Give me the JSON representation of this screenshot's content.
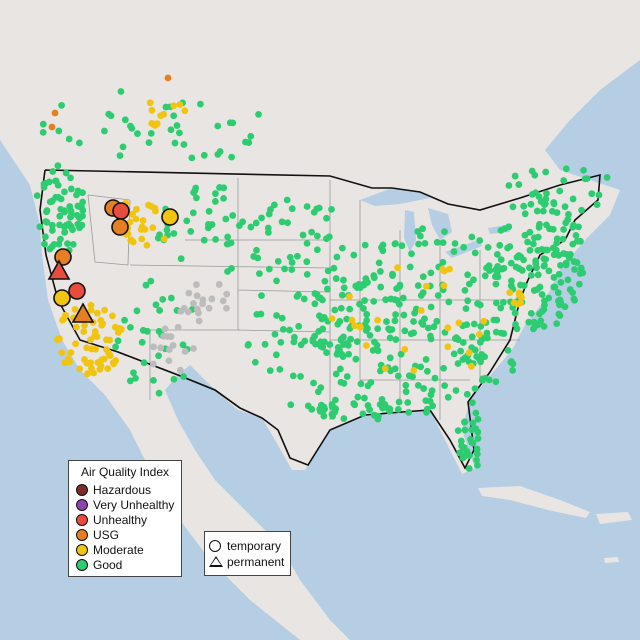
{
  "legend": {
    "title": "Air Quality Index",
    "categories": [
      {
        "label": "Hazardous",
        "color": "#7e2a2a"
      },
      {
        "label": "Very Unhealthy",
        "color": "#8e44ad"
      },
      {
        "label": "Unhealthy",
        "color": "#e74c3c"
      },
      {
        "label": "USG",
        "color": "#e67e22"
      },
      {
        "label": "Moderate",
        "color": "#f1c40f"
      },
      {
        "label": "Good",
        "color": "#2ecc71"
      }
    ]
  },
  "monitor_types": {
    "temporary": "temporary",
    "permanent": "permanent"
  },
  "map_colors": {
    "ocean": "#b5cee3",
    "land": "#e8e5e3",
    "border": "#111111",
    "state_lines": "#9a9a9a",
    "no_data_marker": "#bcbcbc"
  }
}
